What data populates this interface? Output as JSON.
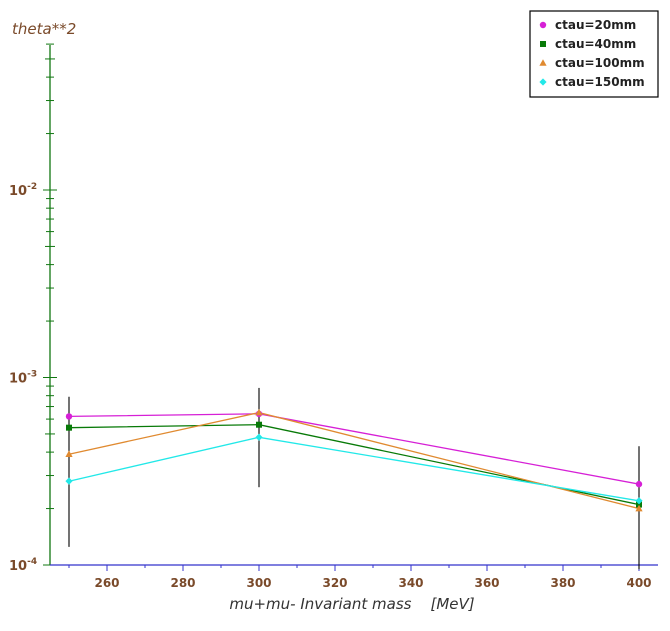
{
  "chart_data": {
    "type": "line",
    "title": "",
    "ylabel": "theta**2",
    "xlabel": "mu+mu- Invariant mass    [MeV]",
    "xlim": [
      245,
      405
    ],
    "ylim": [
      0.0001,
      0.01
    ],
    "yscale": "log",
    "x_ticks": [
      260,
      280,
      300,
      320,
      340,
      360,
      380,
      400
    ],
    "x_tick_labels": [
      "260",
      "280",
      "300",
      "320",
      "340",
      "360",
      "380",
      "400"
    ],
    "y_ticks": [
      0.0001,
      0.001,
      0.01
    ],
    "y_tick_labels": [
      {
        "base": "10",
        "exp": "-4"
      },
      {
        "base": "10",
        "exp": "-3"
      },
      {
        "base": "10",
        "exp": "-2"
      }
    ],
    "grid": false,
    "legend_position": "top-right",
    "x": [
      250,
      300,
      400
    ],
    "series": [
      {
        "name": "ctau=20mm",
        "color": "#d620d6",
        "marker": "circle",
        "values": [
          0.00062,
          0.00064,
          0.00027
        ]
      },
      {
        "name": "ctau=40mm",
        "color": "#087a08",
        "marker": "square",
        "values": [
          0.00054,
          0.00056,
          0.00021
        ]
      },
      {
        "name": "ctau=100mm",
        "color": "#e08a30",
        "marker": "triangle",
        "values": [
          0.00039,
          0.00065,
          0.0002
        ]
      },
      {
        "name": "ctau=150mm",
        "color": "#22e8e8",
        "marker": "diamond",
        "values": [
          0.00028,
          0.00048,
          0.00022
        ]
      }
    ],
    "error_bars": [
      {
        "x": 250,
        "low": 0.000125,
        "high": 0.00079
      },
      {
        "x": 300,
        "low": 0.00026,
        "high": 0.00088
      },
      {
        "x": 400,
        "low": 9.5e-05,
        "high": 0.00043
      }
    ],
    "colors": {
      "x_axis": "#3333cc",
      "y_axis": "#117711",
      "error_bar": "#000000",
      "text": "#7a4a2a"
    }
  }
}
